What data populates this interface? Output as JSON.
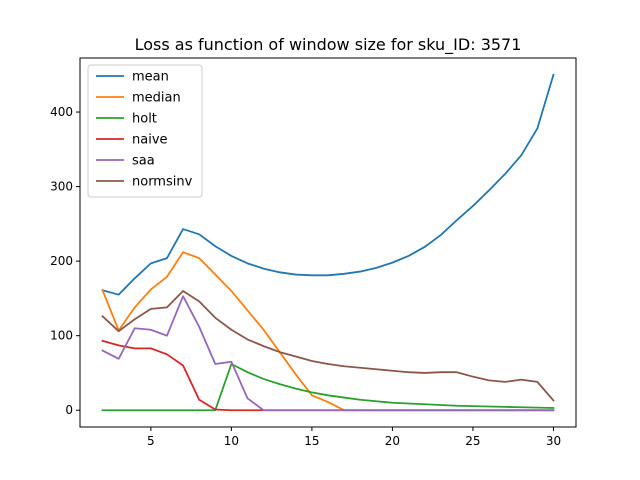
{
  "chart_data": {
    "type": "line",
    "title": "Loss as function of window size for sku_ID: 3571",
    "xlabel": "",
    "ylabel": "",
    "xlim": [
      0.6,
      31.4
    ],
    "ylim": [
      -22.5,
      472.5
    ],
    "xticks": [
      5,
      10,
      15,
      20,
      25,
      30
    ],
    "yticks": [
      0,
      100,
      200,
      300,
      400
    ],
    "legend_position": "top-left",
    "grid": false,
    "x": [
      2,
      3,
      4,
      5,
      6,
      7,
      8,
      9,
      10,
      11,
      12,
      13,
      14,
      15,
      16,
      17,
      18,
      19,
      20,
      21,
      22,
      23,
      24,
      25,
      26,
      27,
      28,
      29,
      30
    ],
    "series": [
      {
        "name": "mean",
        "color": "#1f77b4",
        "values": [
          161,
          155,
          177,
          197,
          204,
          243,
          236,
          220,
          207,
          197,
          190,
          185,
          182,
          181,
          181,
          183,
          186,
          191,
          198,
          207,
          219,
          235,
          255,
          274,
          295,
          317,
          342,
          378,
          450
        ]
      },
      {
        "name": "median",
        "color": "#ff7f0e",
        "values": [
          161,
          107,
          138,
          162,
          179,
          212,
          204,
          182,
          160,
          134,
          108,
          78,
          48,
          20,
          11,
          0,
          0,
          0,
          0,
          0,
          0,
          0,
          0,
          0,
          0,
          0,
          0,
          0,
          0
        ]
      },
      {
        "name": "holt",
        "color": "#2ca02c",
        "values": [
          0,
          0,
          0,
          0,
          0,
          0,
          0,
          0,
          62,
          51,
          42,
          35,
          29,
          24,
          20,
          17,
          14,
          12,
          10,
          9,
          8,
          7,
          6,
          5.5,
          5,
          4.5,
          4,
          3.5,
          3
        ]
      },
      {
        "name": "naive",
        "color": "#d62728",
        "values": [
          93,
          87,
          83,
          83,
          75,
          60,
          14,
          1,
          0,
          0,
          0,
          0,
          0,
          0,
          0,
          0,
          0,
          0,
          0,
          0,
          0,
          0,
          0,
          0,
          0,
          0,
          0,
          0,
          0
        ]
      },
      {
        "name": "saa",
        "color": "#9467bd",
        "values": [
          80,
          69,
          110,
          108,
          100,
          153,
          112,
          62,
          65,
          16,
          0,
          0,
          0,
          0,
          0,
          0,
          0,
          0,
          0,
          0,
          0,
          0,
          0,
          0,
          0,
          0,
          0,
          0,
          0
        ]
      },
      {
        "name": "normsinv",
        "color": "#8c564b",
        "values": [
          126,
          106,
          122,
          136,
          138,
          160,
          146,
          124,
          108,
          95,
          86,
          78,
          72,
          66,
          62,
          59,
          57,
          55,
          53,
          51,
          50,
          51,
          51,
          45,
          40,
          38,
          41,
          38,
          13
        ]
      }
    ]
  }
}
